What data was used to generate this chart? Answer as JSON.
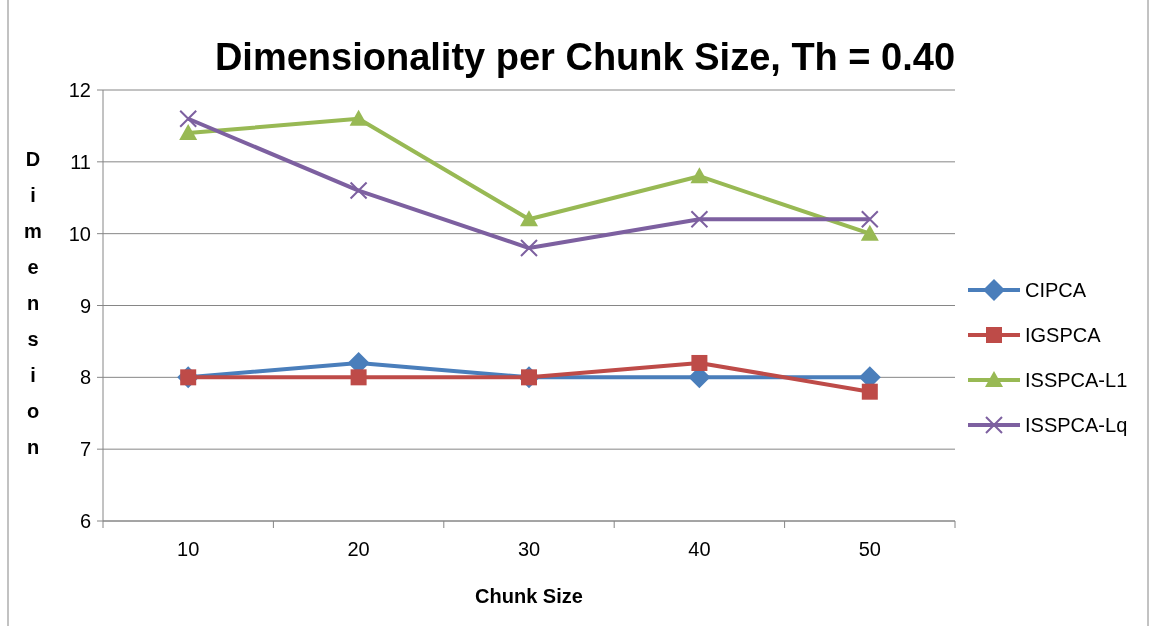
{
  "chart_data": {
    "type": "line",
    "title": "Dimensionality per Chunk Size, Th = 0.40",
    "xlabel": "Chunk Size",
    "ylabel": "Dimension",
    "categories": [
      "10",
      "20",
      "30",
      "40",
      "50"
    ],
    "series": [
      {
        "name": "CIPCA",
        "color": "#4a7ebb",
        "marker": "diamond",
        "values": [
          8,
          8.2,
          8,
          8,
          8
        ]
      },
      {
        "name": "IGSPCA",
        "color": "#be4b48",
        "marker": "square",
        "values": [
          8,
          8,
          8,
          8.2,
          7.8
        ]
      },
      {
        "name": "ISSPCA-L1",
        "color": "#98b954",
        "marker": "triangle",
        "values": [
          11.4,
          11.6,
          10.2,
          10.8,
          10
        ]
      },
      {
        "name": "ISSPCA-Lq",
        "color": "#7d60a0",
        "marker": "cross",
        "values": [
          11.6,
          10.6,
          9.8,
          10.2,
          10.2
        ]
      }
    ],
    "ylim": [
      6,
      12
    ],
    "yticks": [
      6,
      7,
      8,
      9,
      10,
      11,
      12
    ],
    "grid": "y",
    "legend": "right",
    "line_style": "solid"
  }
}
